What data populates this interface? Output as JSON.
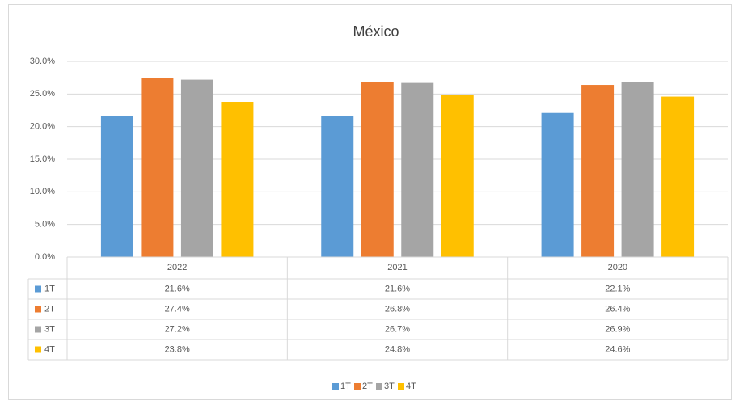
{
  "chart_data": {
    "type": "bar",
    "title": "México",
    "categories": [
      "2022",
      "2021",
      "2020"
    ],
    "series": [
      {
        "name": "1T",
        "color": "#5b9bd5",
        "values": [
          21.6,
          21.6,
          22.1
        ],
        "value_labels": [
          "21.6%",
          "21.6%",
          "22.1%"
        ]
      },
      {
        "name": "2T",
        "color": "#ed7d31",
        "values": [
          27.4,
          26.8,
          26.4
        ],
        "value_labels": [
          "27.4%",
          "26.8%",
          "26.4%"
        ]
      },
      {
        "name": "3T",
        "color": "#a5a5a5",
        "values": [
          27.2,
          26.7,
          26.9
        ],
        "value_labels": [
          "27.2%",
          "26.7%",
          "26.9%"
        ]
      },
      {
        "name": "4T",
        "color": "#ffc000",
        "values": [
          23.8,
          24.8,
          24.6
        ],
        "value_labels": [
          "23.8%",
          "24.8%",
          "24.6%"
        ]
      }
    ],
    "ylim": [
      0,
      30
    ],
    "yticks": [
      {
        "value": 0,
        "label": "0.0%"
      },
      {
        "value": 5,
        "label": "5.0%"
      },
      {
        "value": 10,
        "label": "10.0%"
      },
      {
        "value": 15,
        "label": "15.0%"
      },
      {
        "value": 20,
        "label": "20.0%"
      },
      {
        "value": 25,
        "label": "25.0%"
      },
      {
        "value": 30,
        "label": "30.0%"
      }
    ],
    "grid": true,
    "legend": "bottom"
  }
}
